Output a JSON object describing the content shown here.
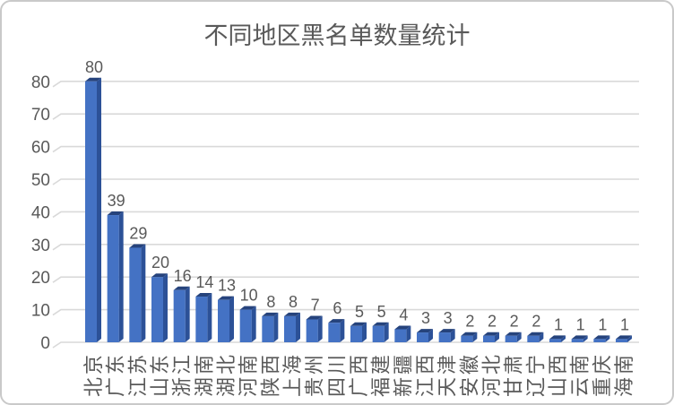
{
  "chart_data": {
    "type": "bar",
    "title": "不同地区黑名单数量统计",
    "categories": [
      "北京",
      "广东",
      "江苏",
      "山东",
      "浙江",
      "湖南",
      "湖北",
      "河南",
      "陕西",
      "上海",
      "贵州",
      "四川",
      "广西",
      "福建",
      "新疆",
      "江西",
      "天津",
      "安徽",
      "河北",
      "甘肃",
      "辽宁",
      "山西",
      "云南",
      "重庆",
      "海南"
    ],
    "values": [
      80,
      39,
      29,
      20,
      16,
      14,
      13,
      10,
      8,
      8,
      7,
      6,
      5,
      5,
      4,
      3,
      3,
      2,
      2,
      2,
      2,
      1,
      1,
      1,
      1
    ],
    "xlabel": "",
    "ylabel": "",
    "ylim": [
      0,
      80
    ],
    "ytick_interval": 10,
    "yticks": [
      0,
      10,
      20,
      30,
      40,
      50,
      60,
      70,
      80
    ],
    "grid": true,
    "legend_position": "none",
    "data_labels": true,
    "style_3d": true,
    "colors": {
      "bar_front": "#4472C4",
      "bar_side": "#2C5197",
      "bar_top": "#26437C",
      "gridline": "#D9D9D9",
      "text": "#595959",
      "frame_border": "#C9C9C9",
      "background": "#FFFFFF"
    }
  }
}
